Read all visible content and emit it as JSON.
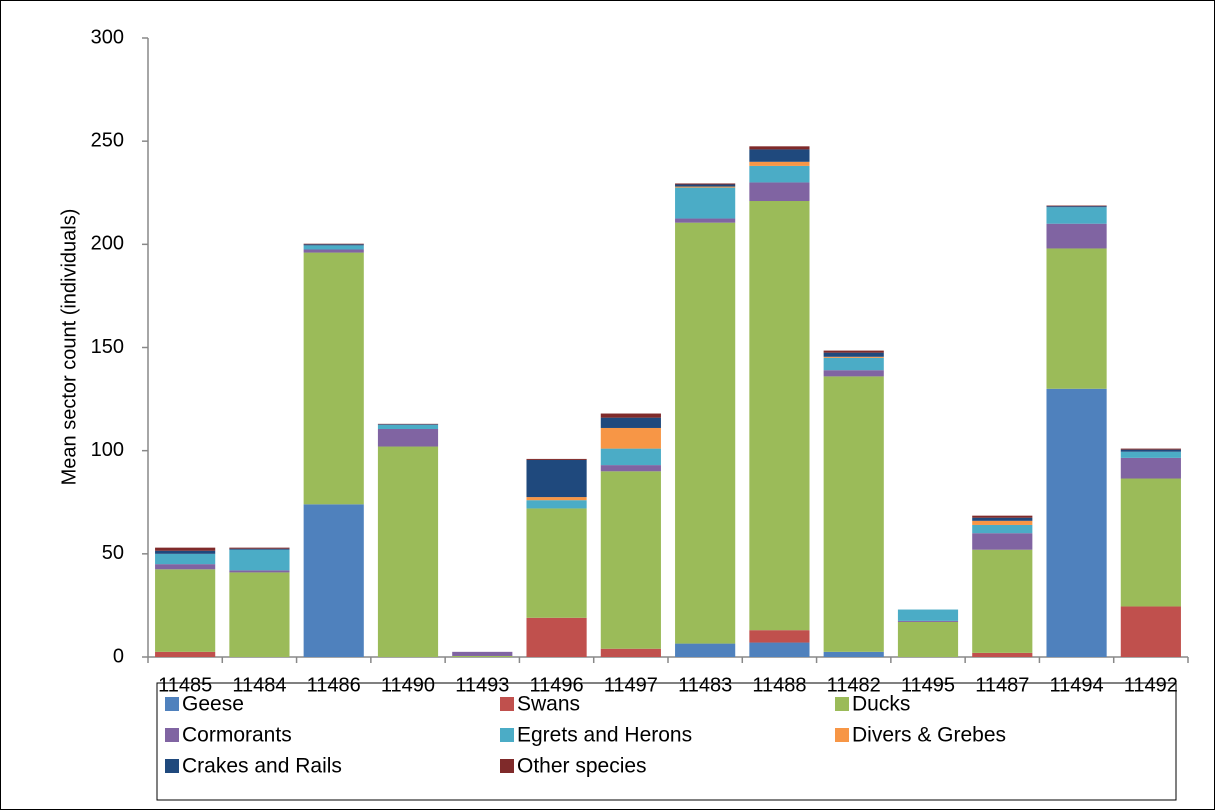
{
  "chart_data": {
    "type": "stacked_bar",
    "y_label": "Mean sector count (individuals)",
    "categories": [
      "11485",
      "11484",
      "11486",
      "11490",
      "11493",
      "11496",
      "11497",
      "11483",
      "11488",
      "11482",
      "11495",
      "11487",
      "11494",
      "11492"
    ],
    "series": [
      {
        "name": "Geese",
        "color": "#4f81bd",
        "values": [
          0,
          0,
          74,
          0,
          0,
          0,
          0,
          6.5,
          7,
          2.5,
          0,
          0,
          130,
          0
        ]
      },
      {
        "name": "Swans",
        "color": "#c0504d",
        "values": [
          2.5,
          0,
          0,
          0,
          0,
          19,
          4,
          0,
          6,
          0,
          0,
          2,
          0,
          24.5
        ]
      },
      {
        "name": "Ducks",
        "color": "#9bbb59",
        "values": [
          40,
          41,
          122,
          102,
          0.5,
          53,
          86,
          204,
          208,
          133.5,
          17,
          50,
          68,
          62
        ]
      },
      {
        "name": "Cormorants",
        "color": "#8064a2",
        "values": [
          2.5,
          1,
          1.5,
          8.5,
          2,
          0,
          3,
          2,
          9,
          3,
          0.5,
          8,
          12,
          10
        ]
      },
      {
        "name": "Egrets and Herons",
        "color": "#4bacc6",
        "values": [
          5,
          10,
          2,
          2,
          0,
          4,
          8,
          15,
          8,
          6,
          5.5,
          4,
          8,
          3
        ]
      },
      {
        "name": "Divers & Grebes",
        "color": "#f79646",
        "values": [
          0,
          0,
          0,
          0,
          0,
          1.5,
          10,
          0.5,
          2,
          0.5,
          0,
          2,
          0,
          0
        ]
      },
      {
        "name": "Crakes and Rails",
        "color": "#1f497d",
        "values": [
          1.5,
          0.5,
          0.5,
          0.3,
          0,
          18,
          5,
          1,
          6,
          2,
          0,
          1.5,
          0.5,
          1
        ]
      },
      {
        "name": "Other species",
        "color": "#7f2a2a",
        "values": [
          1.5,
          0.5,
          0.3,
          0.2,
          0,
          0.5,
          2,
          0.5,
          1.5,
          1,
          0,
          1,
          0.3,
          0.5
        ]
      }
    ],
    "ylim": [
      0,
      300
    ],
    "yticks": [
      0,
      50,
      100,
      150,
      200,
      250,
      300
    ],
    "grid": false
  }
}
